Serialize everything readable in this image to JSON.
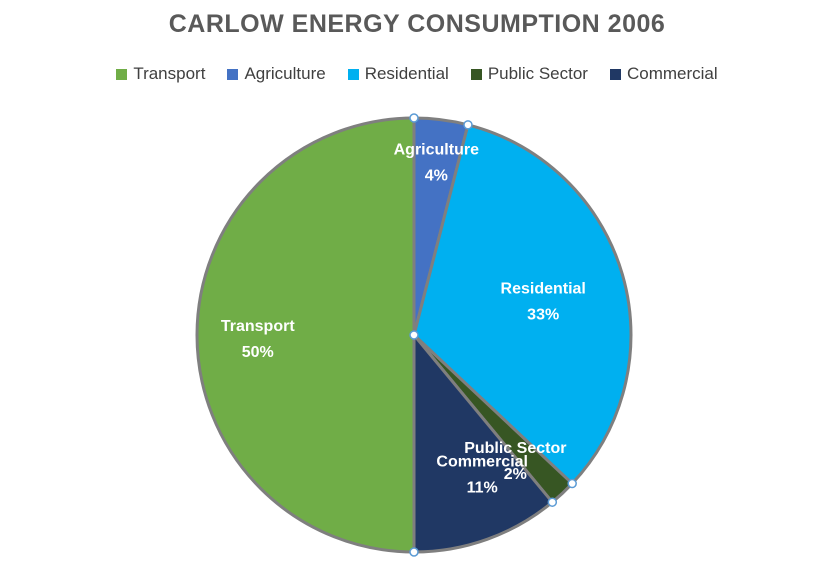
{
  "chart_data": {
    "type": "pie",
    "title": "CARLOW ENERGY CONSUMPTION 2006",
    "legend_position": "top",
    "slices": [
      {
        "name": "Transport",
        "value": 50,
        "label": "50%",
        "color": "#70AD47"
      },
      {
        "name": "Agriculture",
        "value": 4,
        "label": "4%",
        "color": "#4472C4"
      },
      {
        "name": "Residential",
        "value": 33,
        "label": "33%",
        "color": "#00B0F0"
      },
      {
        "name": "Public Sector",
        "value": 2,
        "label": "2%",
        "color": "#375623"
      },
      {
        "name": "Commercial",
        "value": 11,
        "label": "11%",
        "color": "#203864"
      }
    ],
    "draw_order": [
      "Agriculture",
      "Residential",
      "Public Sector",
      "Commercial",
      "Transport"
    ]
  }
}
